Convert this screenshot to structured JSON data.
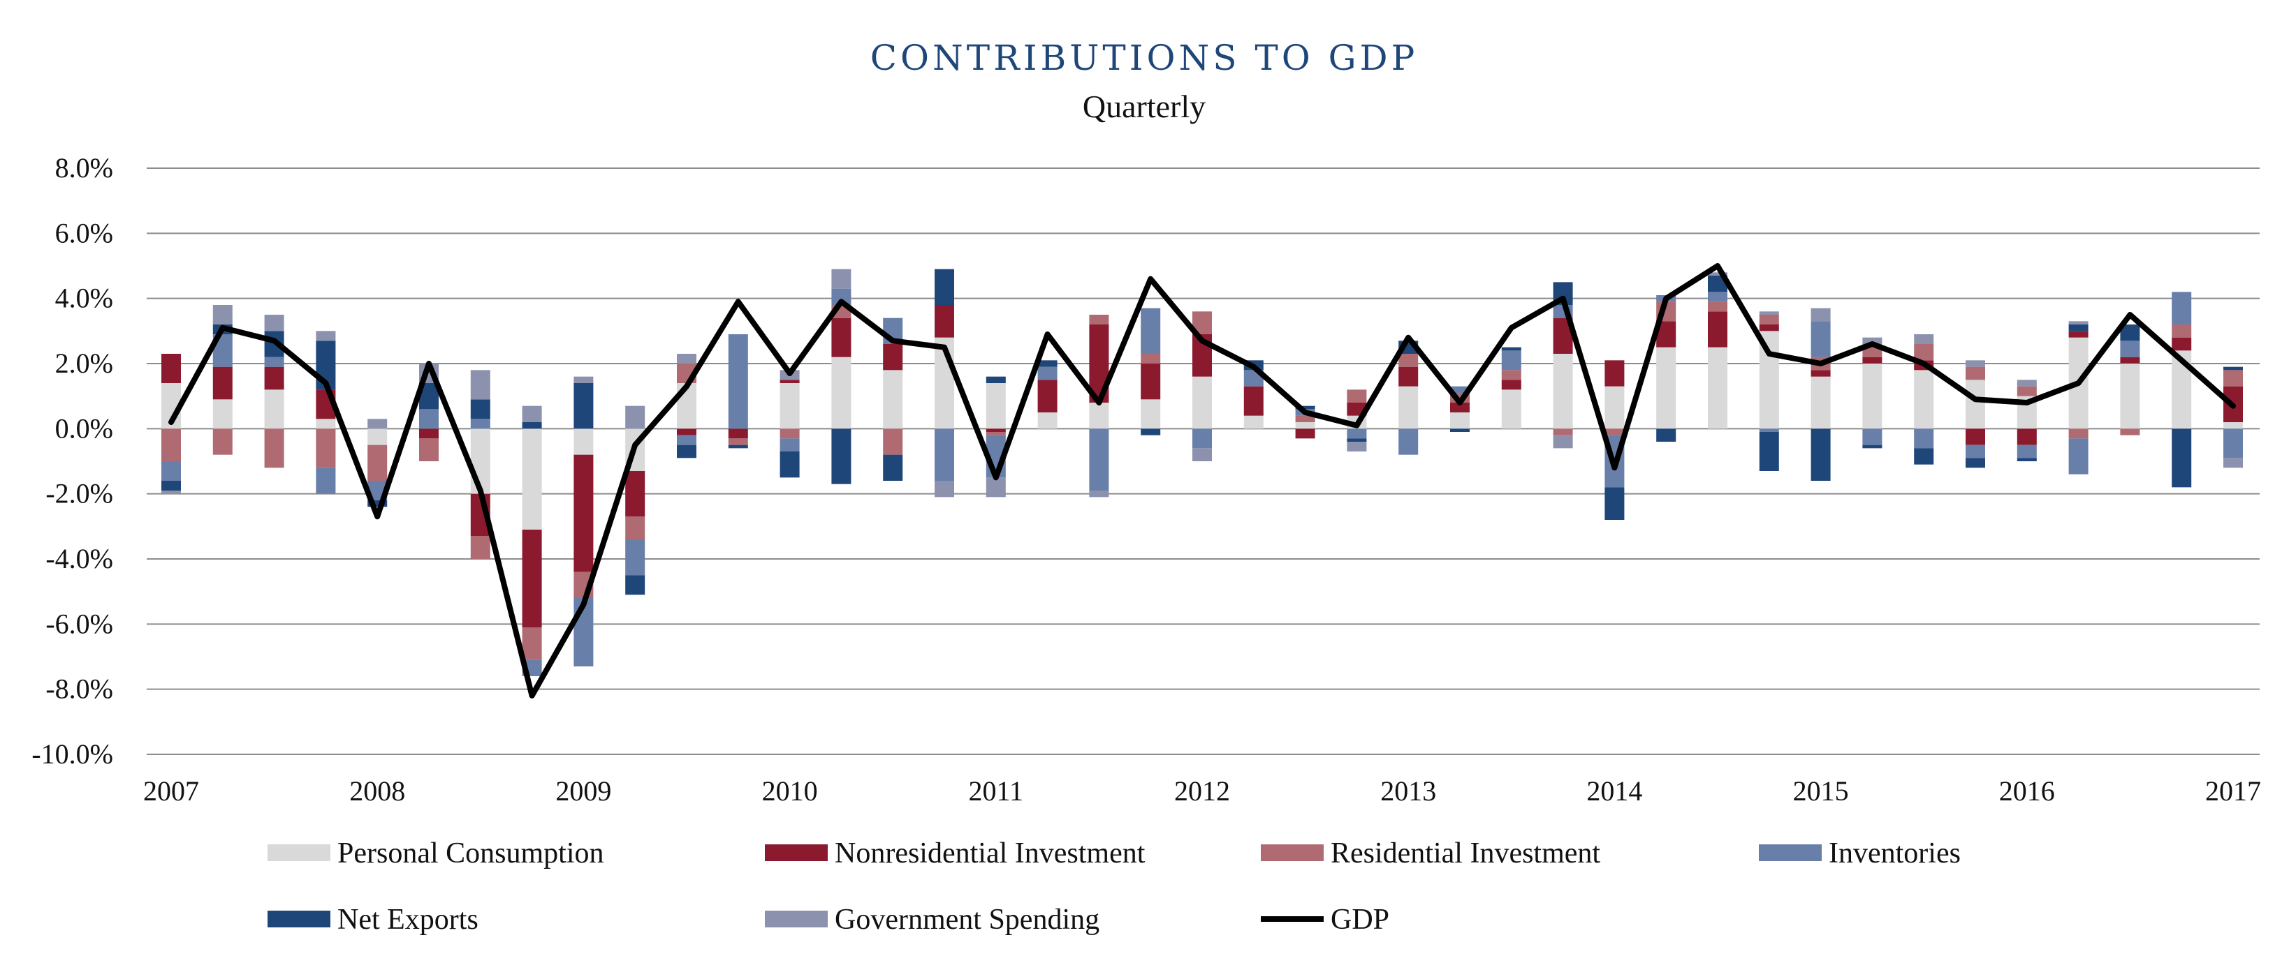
{
  "chart_data": {
    "type": "bar",
    "stacked": true,
    "title": "CONTRIBUTIONS TO GDP",
    "subtitle": "Quarterly",
    "xlabel": "",
    "ylabel": "",
    "ylim": [
      -10,
      8
    ],
    "yticks": [
      "8.0%",
      "6.0%",
      "4.0%",
      "2.0%",
      "0.0%",
      "-2.0%",
      "-4.0%",
      "-6.0%",
      "-8.0%",
      "-10.0%"
    ],
    "ytick_values": [
      8,
      6,
      4,
      2,
      0,
      -2,
      -4,
      -6,
      -8,
      -10
    ],
    "xticks": [
      "2007",
      "2008",
      "2009",
      "2010",
      "2011",
      "2012",
      "2013",
      "2014",
      "2015",
      "2016",
      "2017"
    ],
    "grid": true,
    "legend_position": "bottom",
    "categories": [
      "2007 Q1",
      "2007 Q2",
      "2007 Q3",
      "2007 Q4",
      "2008 Q1",
      "2008 Q2",
      "2008 Q3",
      "2008 Q4",
      "2009 Q1",
      "2009 Q2",
      "2009 Q3",
      "2009 Q4",
      "2010 Q1",
      "2010 Q2",
      "2010 Q3",
      "2010 Q4",
      "2011 Q1",
      "2011 Q2",
      "2011 Q3",
      "2011 Q4",
      "2012 Q1",
      "2012 Q2",
      "2012 Q3",
      "2012 Q4",
      "2013 Q1",
      "2013 Q2",
      "2013 Q3",
      "2013 Q4",
      "2014 Q1",
      "2014 Q2",
      "2014 Q3",
      "2014 Q4",
      "2015 Q1",
      "2015 Q2",
      "2015 Q3",
      "2015 Q4",
      "2016 Q1",
      "2016 Q2",
      "2016 Q3",
      "2016 Q4",
      "2017 Q1"
    ],
    "series": [
      {
        "name": "Personal Consumption",
        "color": "#d9d9d9",
        "values": [
          1.4,
          0.9,
          1.2,
          0.3,
          -0.5,
          0.0,
          -2.0,
          -3.1,
          -0.8,
          -1.3,
          1.4,
          0.0,
          1.4,
          2.2,
          1.8,
          2.8,
          1.4,
          0.5,
          0.8,
          0.9,
          1.6,
          0.4,
          0.2,
          0.4,
          1.3,
          0.5,
          1.2,
          2.3,
          1.3,
          2.5,
          2.5,
          3.0,
          1.6,
          2.0,
          1.8,
          1.5,
          1.0,
          2.8,
          2.0,
          2.4,
          0.2
        ]
      },
      {
        "name": "Nonresidential Investment",
        "color": "#8b1a2e",
        "values": [
          0.9,
          1.0,
          0.7,
          0.9,
          0.0,
          -0.3,
          -1.3,
          -3.0,
          -3.6,
          -1.4,
          -0.2,
          -0.3,
          0.1,
          1.2,
          0.8,
          1.0,
          -0.1,
          1.0,
          2.4,
          1.1,
          1.3,
          0.9,
          -0.3,
          0.4,
          0.6,
          0.3,
          0.3,
          1.1,
          0.8,
          0.8,
          1.1,
          0.2,
          0.2,
          0.2,
          0.3,
          -0.5,
          -0.5,
          0.2,
          0.2,
          0.4,
          1.1
        ]
      },
      {
        "name": "Residential Investment",
        "color": "#b06a72",
        "values": [
          -1.0,
          -0.8,
          -1.2,
          -1.2,
          -1.1,
          -0.7,
          -0.7,
          -1.0,
          -0.8,
          -0.7,
          0.6,
          -0.2,
          -0.3,
          0.4,
          -0.8,
          0.0,
          -0.1,
          0.0,
          0.3,
          0.3,
          0.7,
          0.0,
          0.2,
          0.4,
          0.4,
          0.3,
          0.3,
          -0.2,
          -0.2,
          0.6,
          0.3,
          0.3,
          0.4,
          0.3,
          0.5,
          0.4,
          0.3,
          -0.3,
          -0.2,
          0.4,
          0.5
        ]
      },
      {
        "name": "Inventories",
        "color": "#687fa9",
        "values": [
          -0.6,
          1.0,
          0.3,
          -0.8,
          -0.6,
          0.6,
          0.3,
          -0.5,
          -2.1,
          -1.1,
          -0.3,
          2.9,
          -0.4,
          0.5,
          0.8,
          -1.6,
          -1.3,
          0.4,
          -1.9,
          1.4,
          -0.6,
          0.5,
          0.2,
          -0.3,
          -0.8,
          0.2,
          0.6,
          0.4,
          -1.6,
          0.2,
          0.3,
          -0.1,
          1.1,
          -0.5,
          -0.6,
          -0.4,
          -0.4,
          -1.1,
          0.5,
          1.0,
          -0.9
        ]
      },
      {
        "name": "Net Exports",
        "color": "#1f4679",
        "values": [
          -0.3,
          0.3,
          0.8,
          1.5,
          -0.2,
          0.8,
          0.6,
          0.2,
          1.4,
          -0.6,
          -0.4,
          -0.1,
          -0.8,
          -1.7,
          -0.8,
          1.1,
          0.2,
          0.2,
          0.0,
          -0.2,
          0.0,
          0.3,
          0.1,
          -0.1,
          0.4,
          -0.1,
          0.1,
          0.7,
          -1.0,
          -0.4,
          0.5,
          -1.2,
          -1.6,
          -0.1,
          -0.5,
          -0.3,
          -0.1,
          0.2,
          0.5,
          -1.8,
          0.1
        ]
      },
      {
        "name": "Government Spending",
        "color": "#8c92ad",
        "values": [
          -0.1,
          0.6,
          0.5,
          0.3,
          0.3,
          0.6,
          0.9,
          0.5,
          0.2,
          0.7,
          0.3,
          0.0,
          0.3,
          0.6,
          0.0,
          -0.5,
          -0.6,
          0.0,
          -0.2,
          0.0,
          -0.4,
          0.0,
          0.0,
          -0.3,
          0.0,
          0.0,
          0.0,
          -0.4,
          0.0,
          0.0,
          0.1,
          0.1,
          0.4,
          0.3,
          0.3,
          0.2,
          0.2,
          0.1,
          0.0,
          0.0,
          -0.3
        ]
      }
    ],
    "line_series": {
      "name": "GDP",
      "color": "#000000",
      "values": [
        0.2,
        3.1,
        2.7,
        1.4,
        -2.7,
        2.0,
        -1.9,
        -8.2,
        -5.4,
        -0.5,
        1.3,
        3.9,
        1.7,
        3.9,
        2.7,
        2.5,
        -1.5,
        2.9,
        0.8,
        4.6,
        2.7,
        1.9,
        0.5,
        0.1,
        2.8,
        0.8,
        3.1,
        4.0,
        -1.2,
        4.0,
        5.0,
        2.3,
        2.0,
        2.6,
        2.0,
        0.9,
        0.8,
        1.4,
        3.5,
        2.1,
        0.7
      ]
    }
  }
}
